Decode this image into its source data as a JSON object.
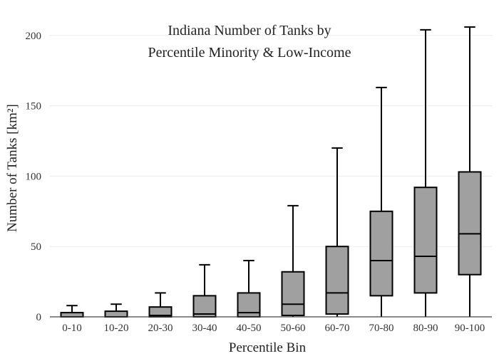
{
  "chart_data": {
    "type": "box",
    "title": "Indiana Number of Tanks by",
    "subtitle": "Percentile Minority & Low-Income",
    "xlabel": "Percentile Bin",
    "ylabel": "Number of Tanks  [km²]",
    "ylim": [
      0,
      210
    ],
    "yticks": [
      0,
      50,
      100,
      150,
      200
    ],
    "grid": true,
    "categories": [
      "0-10",
      "10-20",
      "20-30",
      "30-40",
      "40-50",
      "50-60",
      "60-70",
      "70-80",
      "80-90",
      "90-100"
    ],
    "boxes": [
      {
        "category": "0-10",
        "min": 0,
        "q1": 0,
        "median": 0,
        "q3": 3,
        "max": 8
      },
      {
        "category": "10-20",
        "min": 0,
        "q1": 0,
        "median": 0,
        "q3": 4,
        "max": 9
      },
      {
        "category": "20-30",
        "min": 0,
        "q1": 0,
        "median": 1,
        "q3": 7,
        "max": 17
      },
      {
        "category": "30-40",
        "min": 0,
        "q1": 0,
        "median": 2,
        "q3": 15,
        "max": 37
      },
      {
        "category": "40-50",
        "min": 0,
        "q1": 0,
        "median": 3,
        "q3": 17,
        "max": 40
      },
      {
        "category": "50-60",
        "min": 0,
        "q1": 1,
        "median": 9,
        "q3": 32,
        "max": 79
      },
      {
        "category": "60-70",
        "min": 0,
        "q1": 2,
        "median": 17,
        "q3": 50,
        "max": 120
      },
      {
        "category": "70-80",
        "min": 0,
        "q1": 15,
        "median": 40,
        "q3": 75,
        "max": 163
      },
      {
        "category": "80-90",
        "min": 0,
        "q1": 17,
        "median": 43,
        "q3": 92,
        "max": 204
      },
      {
        "category": "90-100",
        "min": 0,
        "q1": 30,
        "median": 59,
        "q3": 103,
        "max": 206
      }
    ],
    "colors": {
      "box_fill": "#a0a0a0",
      "box_stroke": "#000000",
      "grid": "#ececec"
    }
  }
}
